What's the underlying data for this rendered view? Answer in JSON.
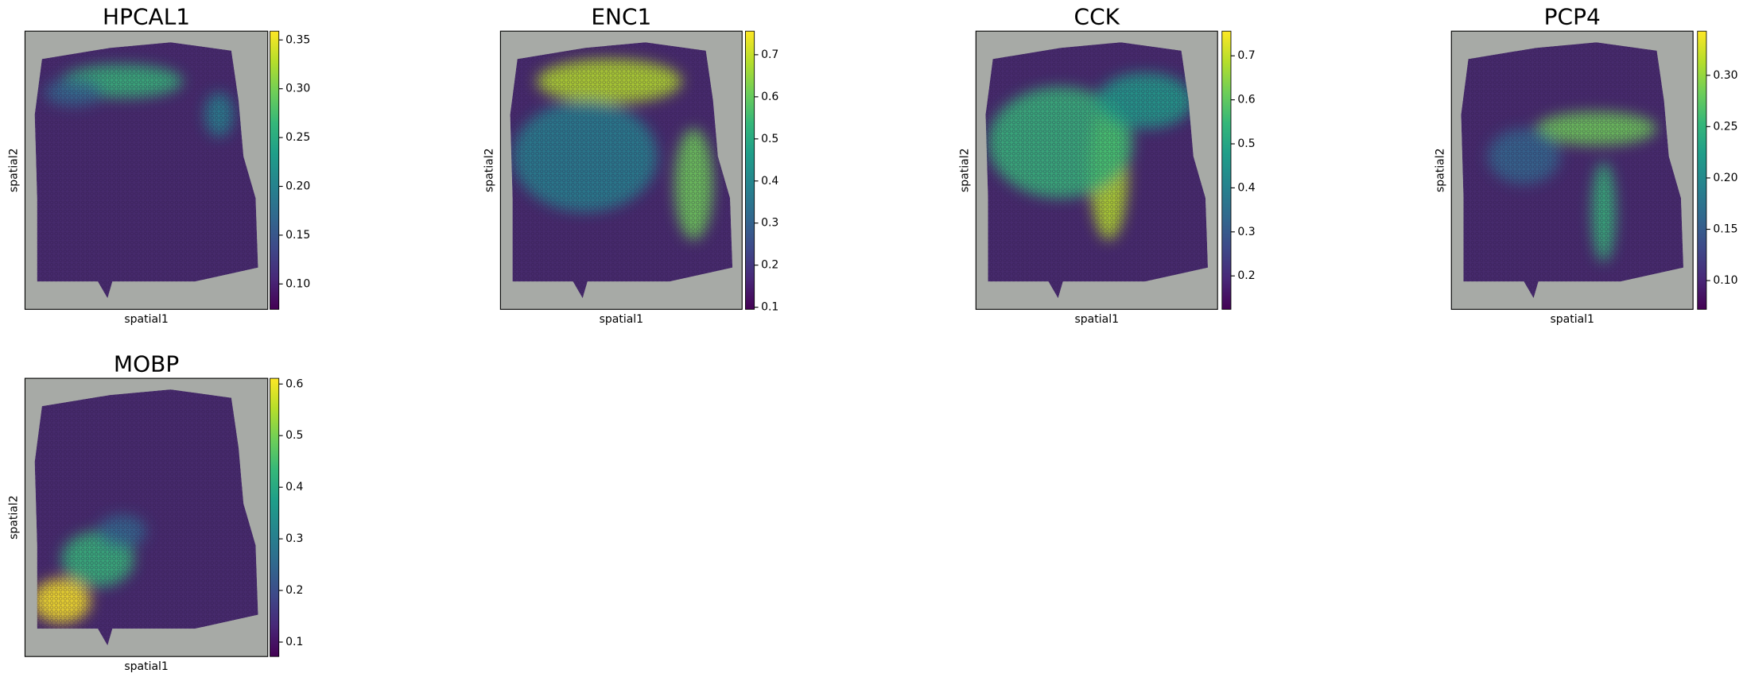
{
  "chart_data": [
    {
      "type": "spatial",
      "title": "HPCAL1",
      "xlabel": "spatial1",
      "ylabel": "spatial2",
      "colormap": "viridis",
      "clim": [
        0.074,
        0.359
      ],
      "cticks": [
        {
          "value": 0.1,
          "label": "0.10"
        },
        0.15,
        {
          "value": 0.2,
          "label": "0.20"
        },
        0.25,
        {
          "value": 0.3,
          "label": "0.30"
        },
        0.35
      ]
    },
    {
      "type": "spatial",
      "title": "ENC1",
      "xlabel": "spatial1",
      "ylabel": "spatial2",
      "colormap": "viridis",
      "clim": [
        0.095,
        0.756
      ],
      "cticks": [
        0.1,
        0.2,
        0.3,
        0.4,
        0.5,
        0.6,
        0.7
      ]
    },
    {
      "type": "spatial",
      "title": "CCK",
      "xlabel": "spatial1",
      "ylabel": "spatial2",
      "colormap": "viridis",
      "clim": [
        0.124,
        0.756
      ],
      "cticks": [
        0.2,
        0.3,
        0.4,
        0.5,
        0.6,
        0.7
      ]
    },
    {
      "type": "spatial",
      "title": "PCP4",
      "xlabel": "spatial1",
      "ylabel": "spatial2",
      "colormap": "viridis",
      "clim": [
        0.072,
        0.343
      ],
      "cticks": [
        {
          "value": 0.1,
          "label": "0.10"
        },
        0.15,
        {
          "value": 0.2,
          "label": "0.20"
        },
        0.25,
        {
          "value": 0.3,
          "label": "0.30"
        }
      ]
    },
    {
      "type": "spatial",
      "title": "MOBP",
      "xlabel": "spatial1",
      "ylabel": "spatial2",
      "colormap": "viridis",
      "clim": [
        0.072,
        0.611
      ],
      "cticks": [
        0.1,
        0.2,
        0.3,
        0.4,
        0.5,
        0.6
      ]
    }
  ]
}
